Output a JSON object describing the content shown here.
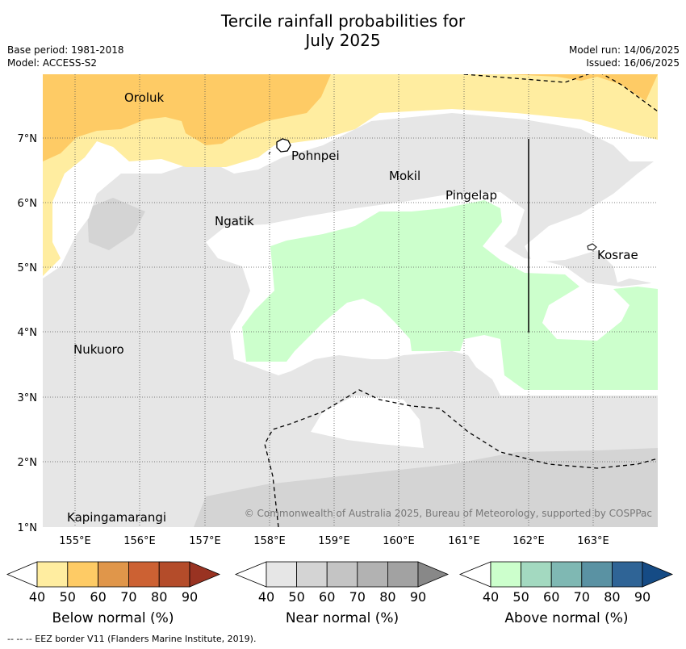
{
  "header": {
    "title_line1": "Tercile rainfall probabilities for",
    "title_line2": "July 2025",
    "base_period": "Base period: 1981-2018",
    "model": "Model: ACCESS-S2",
    "model_run": "Model run: 14/06/2025",
    "issued": "Issued: 16/06/2025"
  },
  "map": {
    "lon_ticks": [
      "155°E",
      "156°E",
      "157°E",
      "158°E",
      "159°E",
      "160°E",
      "161°E",
      "162°E",
      "163°E"
    ],
    "lat_ticks": [
      "7°N",
      "6°N",
      "5°N",
      "4°N",
      "3°N",
      "2°N",
      "1°N"
    ],
    "places": [
      "Oroluk",
      "Pohnpei",
      "Mokil",
      "Pingelap",
      "Ngatik",
      "Kosrae",
      "Nukuoro",
      "Kapingamarangi"
    ],
    "copyright": "© Commonwealth of Australia 2025, Bureau of Meteorology, supported by COSPPac"
  },
  "colorbars": {
    "tick_labels": [
      "40",
      "50",
      "60",
      "70",
      "80",
      "90"
    ],
    "below": {
      "label": "Below normal (%)",
      "colors": [
        "#ffeda0",
        "#fecb65",
        "#e0964a",
        "#cc6133",
        "#b44c2a",
        "#993322"
      ]
    },
    "near": {
      "label": "Near normal (%)",
      "colors": [
        "#e6e6e6",
        "#d4d4d4",
        "#c4c4c4",
        "#b2b2b2",
        "#a2a2a2",
        "#888888"
      ]
    },
    "above": {
      "label": "Above normal (%)",
      "colors": [
        "#ccffcc",
        "#a3d9c0",
        "#7fb8b3",
        "#5a92a3",
        "#2f6496",
        "#154b85"
      ]
    }
  },
  "footer": {
    "eez_note": "-- -- -- EEZ border V11 (Flanders Marine Institute, 2019)."
  }
}
